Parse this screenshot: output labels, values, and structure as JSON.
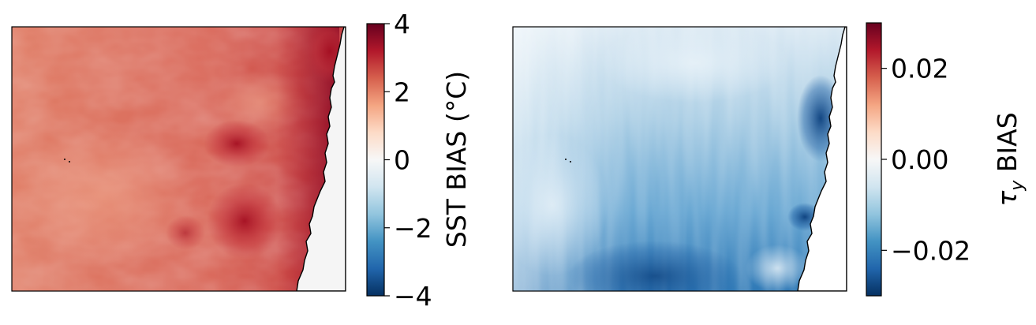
{
  "chart_data": [
    {
      "type": "heatmap",
      "title": "",
      "xlabel": "",
      "ylabel": "",
      "description_field": "SST bias map",
      "colormap": "RdBu_r",
      "colorbar": {
        "label": "SST BIAS (°C)",
        "vmin": -4,
        "vmax": 4,
        "ticks": [
          4,
          2,
          0,
          -2,
          -4
        ],
        "tick_labels": [
          "4",
          "2",
          "0",
          "−2",
          "−4"
        ]
      },
      "field_levels": {
        "background": 2.3,
        "offshore_west": 2.1,
        "eddy_center_north": 3.4,
        "eddy_center_south": 3.6,
        "coastal_north_max": 4.0,
        "coastal_mid": 3.2
      },
      "land_color": "#f5f5f5"
    },
    {
      "type": "heatmap",
      "title": "",
      "xlabel": "",
      "ylabel": "",
      "colormap": "RdBu_r",
      "colorbar": {
        "label_main": "τ",
        "label_sub": "y",
        "label_rest": " BIAS",
        "vmin": -0.03,
        "vmax": 0.03,
        "ticks": [
          0.02,
          0.0,
          -0.02
        ],
        "tick_labels": [
          "0.02",
          "0.00",
          "−0.02"
        ]
      },
      "field_levels": {
        "northwest": -0.004,
        "center": -0.012,
        "south": -0.022,
        "coastal_north_min": -0.028,
        "coastal_south_min": -0.026
      },
      "land_color": "#ffffff"
    }
  ],
  "colors": {
    "cmap_stops": [
      "#053061",
      "#2166ac",
      "#4393c3",
      "#92c5de",
      "#d1e5f0",
      "#f7f7f7",
      "#fddbc7",
      "#f4a582",
      "#d6604d",
      "#b2182b",
      "#67001f"
    ]
  }
}
